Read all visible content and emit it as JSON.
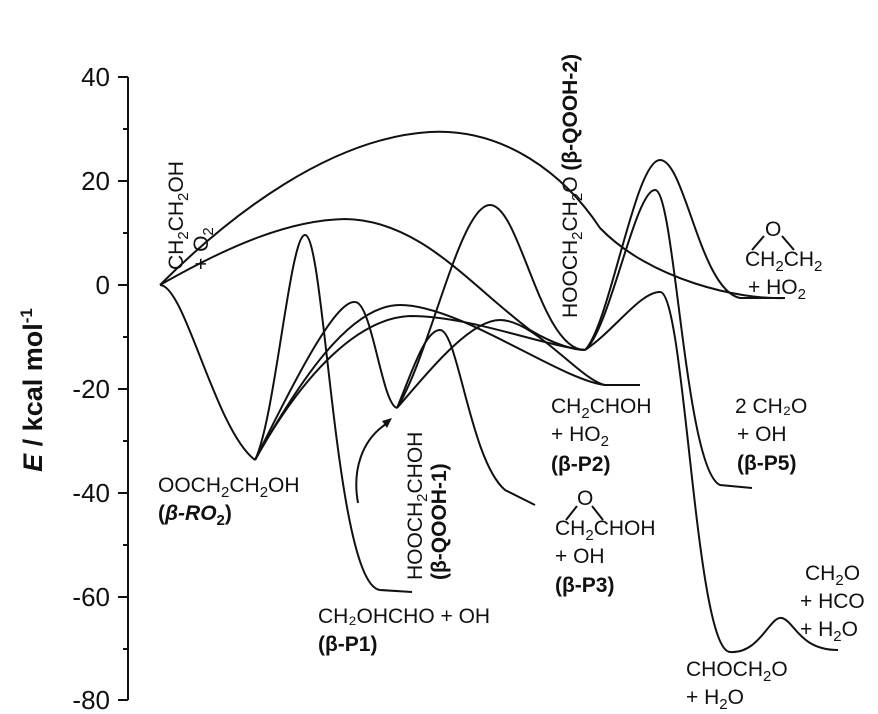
{
  "axis": {
    "ylabel_main": "E",
    "ylabel_rest": " / kcal mol",
    "ylabel_sup": "-1",
    "ticks": [
      "40",
      "20",
      "0",
      "-20",
      "-40",
      "-60",
      "-80"
    ]
  },
  "species": {
    "reactant": {
      "line1a": "CH",
      "line1b": "2",
      "line1c": "CH",
      "line1d": "2",
      "line1e": "OH",
      "line2a": "+ O",
      "line2b": "2"
    },
    "ro2": {
      "line1a": "OOCH",
      "line1b": "2",
      "line1c": "CH",
      "line1d": "2",
      "line1e": "OH",
      "tag_open": "(",
      "tag": "β-RO",
      "tag_sub": "2",
      "tag_close": ")"
    },
    "qooh1": {
      "line1a": "HOOCH",
      "line1b": "2",
      "line1c": "CHOH",
      "tag": "(β-QOOH-1)"
    },
    "qooh2": {
      "main_a": "HOOCH",
      "main_b": "2",
      "main_c": "CH",
      "main_d": "2",
      "main_e": "O ",
      "tag": "(β-QOOH-2)"
    },
    "p1": {
      "line1": "CH₂OHCHO + OH",
      "tag": "(β-P1)"
    },
    "p2": {
      "line1a": "CH",
      "line1b": "2",
      "line1c": "CHOH",
      "line2a": "+ HO",
      "line2b": "2",
      "tag": "(β-P2)"
    },
    "p3": {
      "ring_o": "O",
      "line1a": "CH",
      "line1b": "2",
      "line1c": "CHOH",
      "line2": "+ OH",
      "tag": "(β-P3)"
    },
    "p4": {
      "ring_o": "O",
      "line1a": "CH",
      "line1b": "2",
      "line1c": "CH",
      "line1d": "2",
      "line2a": "+ HO",
      "line2b": "2"
    },
    "p5": {
      "line1": "2 CH₂O",
      "line2": "+ OH",
      "tag": "(β-P5)"
    },
    "p6": {
      "line1a": "CHOCH",
      "line1b": "2",
      "line1c": "O",
      "line2a": "+ H",
      "line2b": "2",
      "line2c": "O"
    },
    "p7": {
      "line1a": "CH",
      "line1b": "2",
      "line1c": "O",
      "line2": "+ HCO",
      "line3a": "+ H",
      "line3b": "2",
      "line3c": "O"
    }
  }
}
